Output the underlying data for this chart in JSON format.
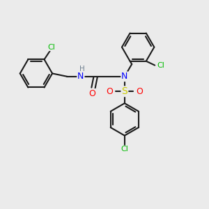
{
  "bg": "#ebebeb",
  "bond_color": "#1a1a1a",
  "bond_lw": 1.5,
  "atom_colors": {
    "N": "#0000ff",
    "O": "#ff0000",
    "S": "#cccc00",
    "Cl": "#00bb00",
    "H": "#708090"
  },
  "figsize": [
    3.0,
    3.0
  ],
  "dpi": 100,
  "xlim": [
    0,
    10
  ],
  "ylim": [
    0,
    10
  ]
}
